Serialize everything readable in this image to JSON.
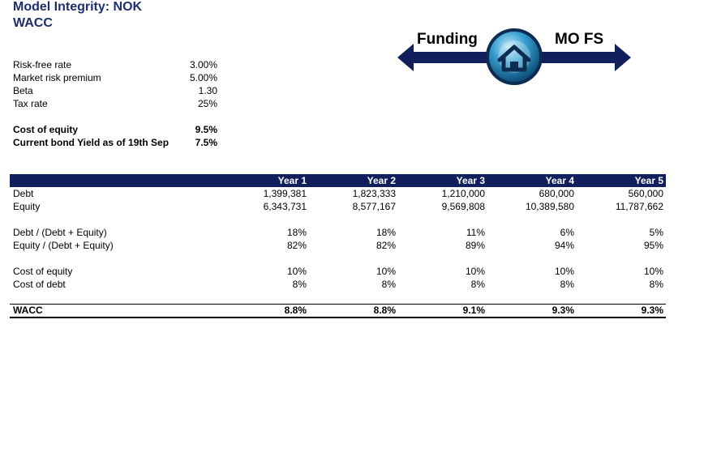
{
  "header": {
    "title": "Model Integrity: NOK",
    "subtitle": "WACC"
  },
  "nav": {
    "left_label": "Funding",
    "right_label": "MO FS",
    "home_icon": "home-icon",
    "arrow_color": "#11205c",
    "button_color": "#2a8fc0"
  },
  "inputs": [
    {
      "label": "Risk-free rate",
      "value": "3.00%"
    },
    {
      "label": "Market risk premium",
      "value": "5.00%"
    },
    {
      "label": "Beta",
      "value": "1.30"
    },
    {
      "label": "Tax rate",
      "value": "25%"
    }
  ],
  "outputs": [
    {
      "label": "Cost of equity",
      "value": "9.5%"
    },
    {
      "label": "Current bond Yield as of 19th Sep",
      "value": "7.5%"
    }
  ],
  "table": {
    "header_color": "#11205c",
    "columns": [
      "Year 1",
      "Year 2",
      "Year 3",
      "Year 4",
      "Year 5"
    ],
    "rows": {
      "debt": {
        "label": "Debt",
        "values": [
          "1,399,381",
          "1,823,333",
          "1,210,000",
          "680,000",
          "560,000"
        ]
      },
      "equity": {
        "label": "Equity",
        "values": [
          "6,343,731",
          "8,577,167",
          "9,569,808",
          "10,389,580",
          "11,787,662"
        ]
      },
      "debt_ratio": {
        "label": "Debt / (Debt + Equity)",
        "values": [
          "18%",
          "18%",
          "11%",
          "6%",
          "5%"
        ]
      },
      "equity_ratio": {
        "label": "Equity / (Debt + Equity)",
        "values": [
          "82%",
          "82%",
          "89%",
          "94%",
          "95%"
        ]
      },
      "cost_equity": {
        "label": "Cost of equity",
        "values": [
          "10%",
          "10%",
          "10%",
          "10%",
          "10%"
        ]
      },
      "cost_debt": {
        "label": "Cost of debt",
        "values": [
          "8%",
          "8%",
          "8%",
          "8%",
          "8%"
        ]
      },
      "wacc": {
        "label": "WACC",
        "values": [
          "8.8%",
          "8.8%",
          "9.1%",
          "9.3%",
          "9.3%"
        ]
      }
    }
  }
}
